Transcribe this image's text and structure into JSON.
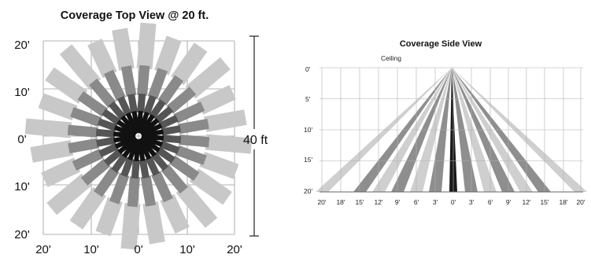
{
  "top_view": {
    "title": "Coverage Top View @ 20 ft.",
    "y_labels": [
      "20'",
      "10'",
      "0'",
      "10'",
      "20'"
    ],
    "x_labels": [
      "20'",
      "10'",
      "0'",
      "10'",
      "20'"
    ],
    "dimension_label": "40 ft",
    "range_ft": 20,
    "rays": [
      {
        "angle_deg": 0,
        "shade": "light"
      },
      {
        "angle_deg": 15,
        "shade": "light"
      },
      {
        "angle_deg": 30,
        "shade": "light"
      },
      {
        "angle_deg": 45,
        "shade": "light"
      },
      {
        "angle_deg": 60,
        "shade": "light"
      },
      {
        "angle_deg": 75,
        "shade": "light"
      },
      {
        "angle_deg": 90,
        "shade": "light"
      },
      {
        "angle_deg": 105,
        "shade": "light"
      },
      {
        "angle_deg": 120,
        "shade": "light"
      },
      {
        "angle_deg": 135,
        "shade": "light"
      },
      {
        "angle_deg": 150,
        "shade": "light"
      },
      {
        "angle_deg": 165,
        "shade": "light"
      },
      {
        "angle_deg": 180,
        "shade": "light"
      },
      {
        "angle_deg": 195,
        "shade": "light"
      },
      {
        "angle_deg": 210,
        "shade": "light"
      },
      {
        "angle_deg": 225,
        "shade": "light"
      },
      {
        "angle_deg": 240,
        "shade": "light"
      },
      {
        "angle_deg": 255,
        "shade": "light"
      },
      {
        "angle_deg": 270,
        "shade": "light"
      },
      {
        "angle_deg": 285,
        "shade": "light"
      },
      {
        "angle_deg": 300,
        "shade": "light"
      },
      {
        "angle_deg": 315,
        "shade": "light"
      },
      {
        "angle_deg": 330,
        "shade": "light"
      },
      {
        "angle_deg": 345,
        "shade": "light"
      }
    ]
  },
  "side_view": {
    "title": "Coverage Side View",
    "ceiling_label": "Ceiling",
    "y_labels": [
      "0'",
      "5'",
      "10'",
      "15'",
      "20'"
    ],
    "x_labels": [
      "20'",
      "18'",
      "15'",
      "12'",
      "9'",
      "6'",
      "3'",
      "0'",
      "3'",
      "6'",
      "9'",
      "12'",
      "15'",
      "18'",
      "20'"
    ],
    "height_ft": 20,
    "beams": [
      {
        "offset_ft": -20,
        "shade": "light"
      },
      {
        "offset_ft": -15,
        "shade": "dark"
      },
      {
        "offset_ft": -12,
        "shade": "light"
      },
      {
        "offset_ft": -9,
        "shade": "dark"
      },
      {
        "offset_ft": -6,
        "shade": "light"
      },
      {
        "offset_ft": -3,
        "shade": "dark"
      },
      {
        "offset_ft": 0,
        "shade": "black"
      },
      {
        "offset_ft": 3,
        "shade": "dark"
      },
      {
        "offset_ft": 6,
        "shade": "light"
      },
      {
        "offset_ft": 9,
        "shade": "dark"
      },
      {
        "offset_ft": 12,
        "shade": "light"
      },
      {
        "offset_ft": 15,
        "shade": "dark"
      },
      {
        "offset_ft": 20,
        "shade": "light"
      }
    ]
  },
  "colors": {
    "light": "#c8c8c8",
    "mid": "#8a8a8a",
    "dark": "#555555",
    "black": "#111111",
    "grid": "#9a9a9a",
    "text": "#111111"
  }
}
